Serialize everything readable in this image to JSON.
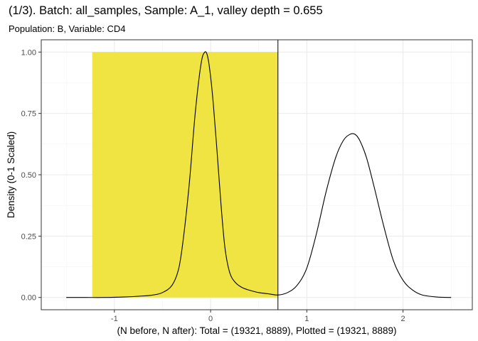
{
  "chart_data": {
    "type": "line",
    "title": "(1/3). Batch: all_samples, Sample: A_1, valley depth = 0.655",
    "subtitle": "Population: B, Variable: CD4",
    "xlabel": "(N before, N after): Total = (19321, 8889), Plotted = (19321, 8889)",
    "ylabel": "Density (0-1 Scaled)",
    "xlim": [
      -1.76,
      2.72
    ],
    "ylim": [
      -0.05,
      1.05
    ],
    "x_ticks": [
      -1,
      0,
      1,
      2
    ],
    "x_tick_labels": [
      "-1",
      "0",
      "1",
      "2"
    ],
    "y_ticks": [
      0,
      0.25,
      0.5,
      0.75,
      1.0
    ],
    "y_tick_labels": [
      "0.00",
      "0.25",
      "0.50",
      "0.75",
      "1.00"
    ],
    "grid": true,
    "shaded_region": {
      "x": [
        -1.23,
        0.7
      ],
      "y": [
        0,
        1.0
      ],
      "color": "#F0E442"
    },
    "vline_x": 0.7,
    "curve_color": "#000000",
    "series": [
      {
        "x": [
          -1.5,
          -1.3,
          -1.1,
          -0.9,
          -0.75,
          -0.6,
          -0.5,
          -0.4,
          -0.33,
          -0.28,
          -0.22,
          -0.16,
          -0.1,
          -0.06,
          -0.03,
          0.0,
          0.03,
          0.07,
          0.11,
          0.15,
          0.2,
          0.26,
          0.33,
          0.4,
          0.5,
          0.6,
          0.7,
          0.8,
          0.9,
          1.0,
          1.1,
          1.2,
          1.3,
          1.38,
          1.45,
          1.5,
          1.55,
          1.62,
          1.7,
          1.8,
          1.9,
          2.0,
          2.1,
          2.2,
          2.35,
          2.5
        ],
        "y": [
          0.0,
          0.0,
          0.0,
          0.002,
          0.005,
          0.01,
          0.02,
          0.05,
          0.12,
          0.25,
          0.47,
          0.75,
          0.95,
          1.0,
          0.98,
          0.9,
          0.78,
          0.58,
          0.37,
          0.2,
          0.1,
          0.06,
          0.04,
          0.03,
          0.02,
          0.015,
          0.01,
          0.02,
          0.05,
          0.12,
          0.26,
          0.43,
          0.57,
          0.64,
          0.665,
          0.665,
          0.64,
          0.57,
          0.45,
          0.29,
          0.15,
          0.07,
          0.03,
          0.01,
          0.002,
          0.0
        ]
      }
    ]
  }
}
